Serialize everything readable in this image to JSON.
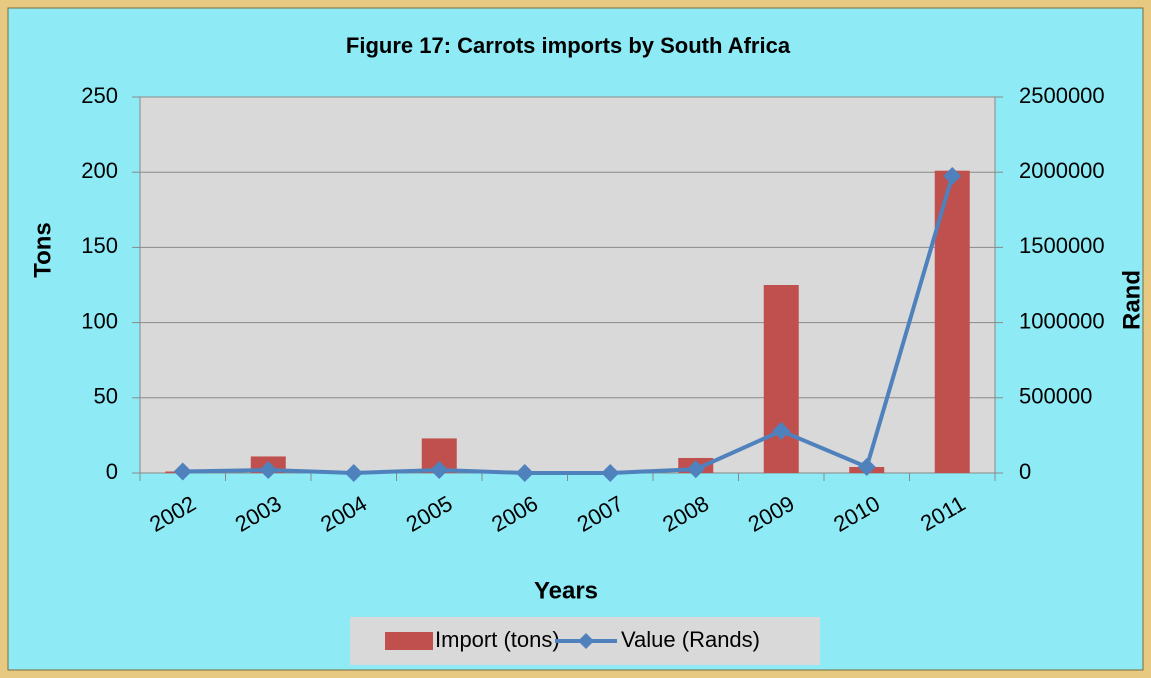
{
  "chart_data": {
    "type": "bar",
    "title": "Figure 17: Carrots imports by South Africa",
    "x_label": "Years",
    "y_label": "Tons",
    "y2_label": "Rand",
    "categories": [
      "2002",
      "2003",
      "2004",
      "2005",
      "2006",
      "2007",
      "2008",
      "2009",
      "2010",
      "2011"
    ],
    "series": [
      {
        "name": "Import (tons)",
        "color": "#c0504d",
        "values": [
          1,
          11,
          0,
          23,
          0,
          0,
          10,
          125,
          4,
          201
        ]
      },
      {
        "name": "Value (Rands)",
        "color": "#4f81bd",
        "type": "line",
        "axis": "y2",
        "values": [
          10000,
          20000,
          0,
          20000,
          0,
          0,
          25000,
          280000,
          40000,
          1975000
        ]
      }
    ],
    "ylim": [
      0,
      250
    ],
    "yticks": [
      0,
      50,
      100,
      150,
      200,
      250
    ],
    "y2lim": [
      0,
      2500000
    ],
    "y2ticks": [
      0,
      500000,
      1000000,
      1500000,
      2000000,
      2500000
    ],
    "grid": true,
    "legend": "bottom"
  }
}
